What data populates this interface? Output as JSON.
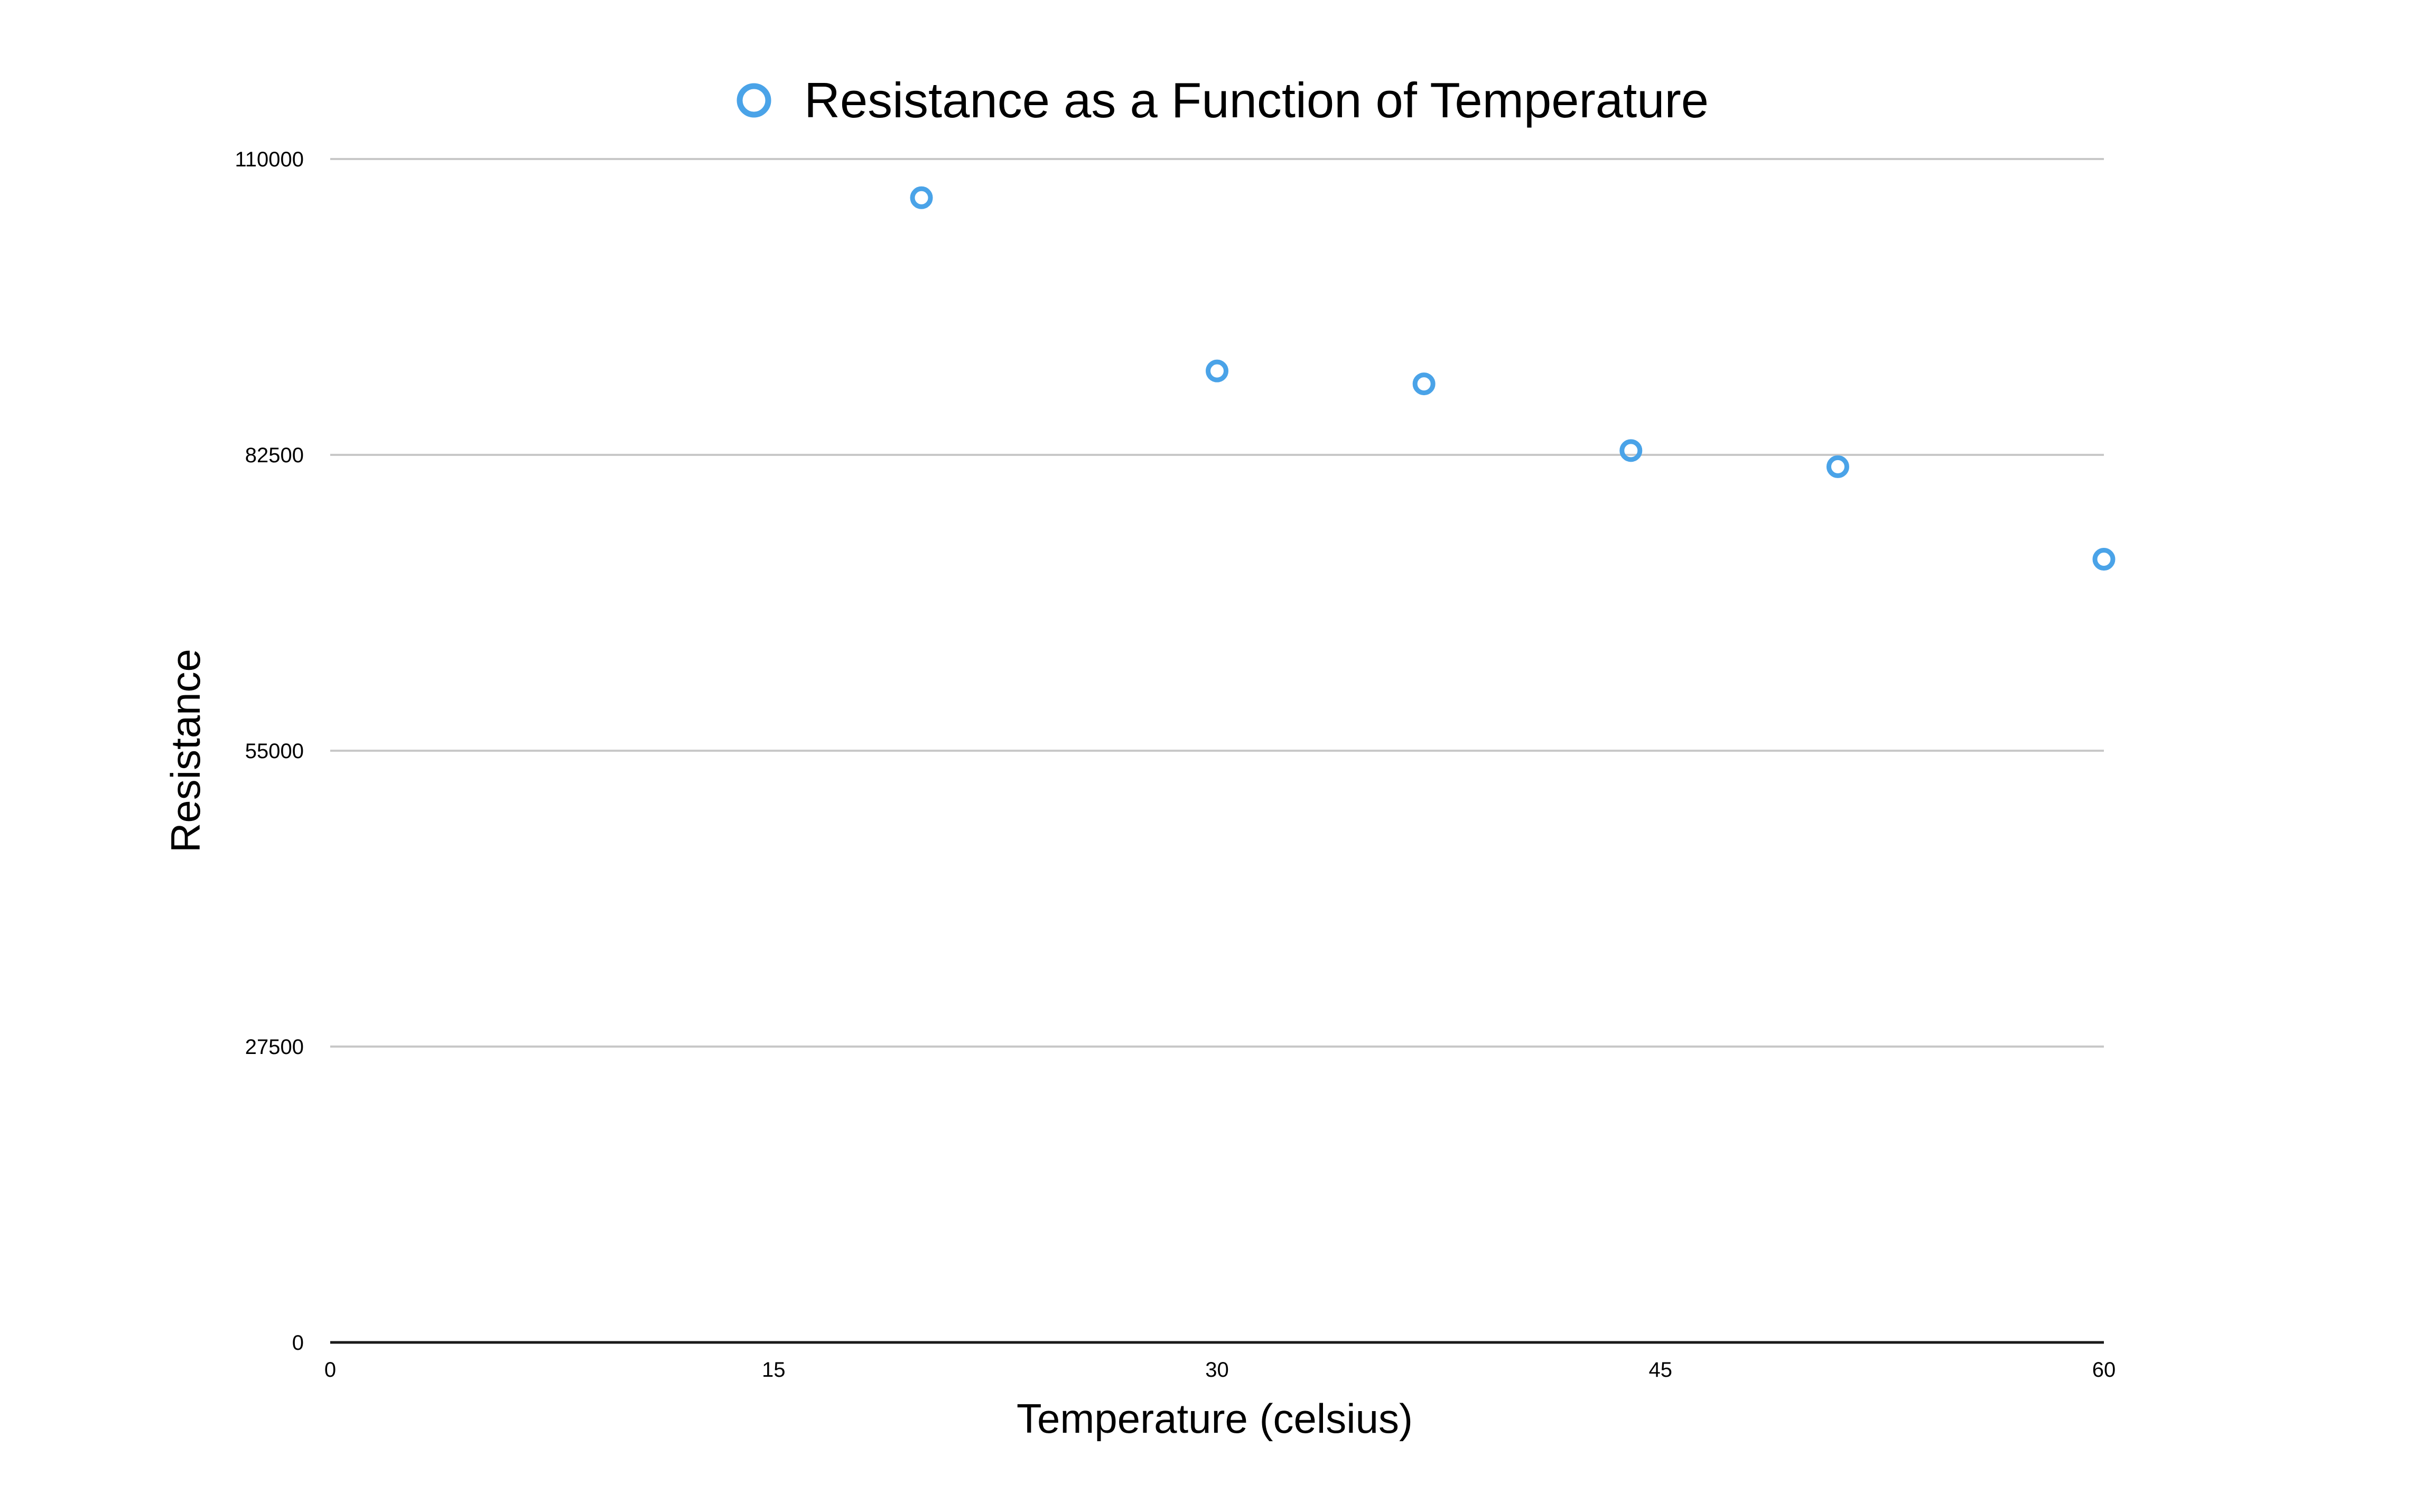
{
  "chart_data": {
    "type": "scatter",
    "legend": {
      "placement": "top-center"
    },
    "xlabel": "Temperature (celsius)",
    "ylabel": "Resistance",
    "xlim": [
      0,
      60
    ],
    "ylim": [
      0,
      110000
    ],
    "x_ticks": [
      "0",
      "15",
      "30",
      "45",
      "60"
    ],
    "y_ticks": [
      "0",
      "27500",
      "55000",
      "82500",
      "110000"
    ],
    "grid": {
      "horizontal": true,
      "vertical": false
    },
    "series": [
      {
        "name": "Resistance as a Function of Temperature",
        "color": "#4aa3e8",
        "marker": "hollow-circle",
        "points": [
          {
            "x": 20,
            "y": 106400
          },
          {
            "x": 30,
            "y": 90300
          },
          {
            "x": 37,
            "y": 89100
          },
          {
            "x": 44,
            "y": 82900
          },
          {
            "x": 51,
            "y": 81400
          },
          {
            "x": 60,
            "y": 72800
          }
        ]
      }
    ]
  }
}
